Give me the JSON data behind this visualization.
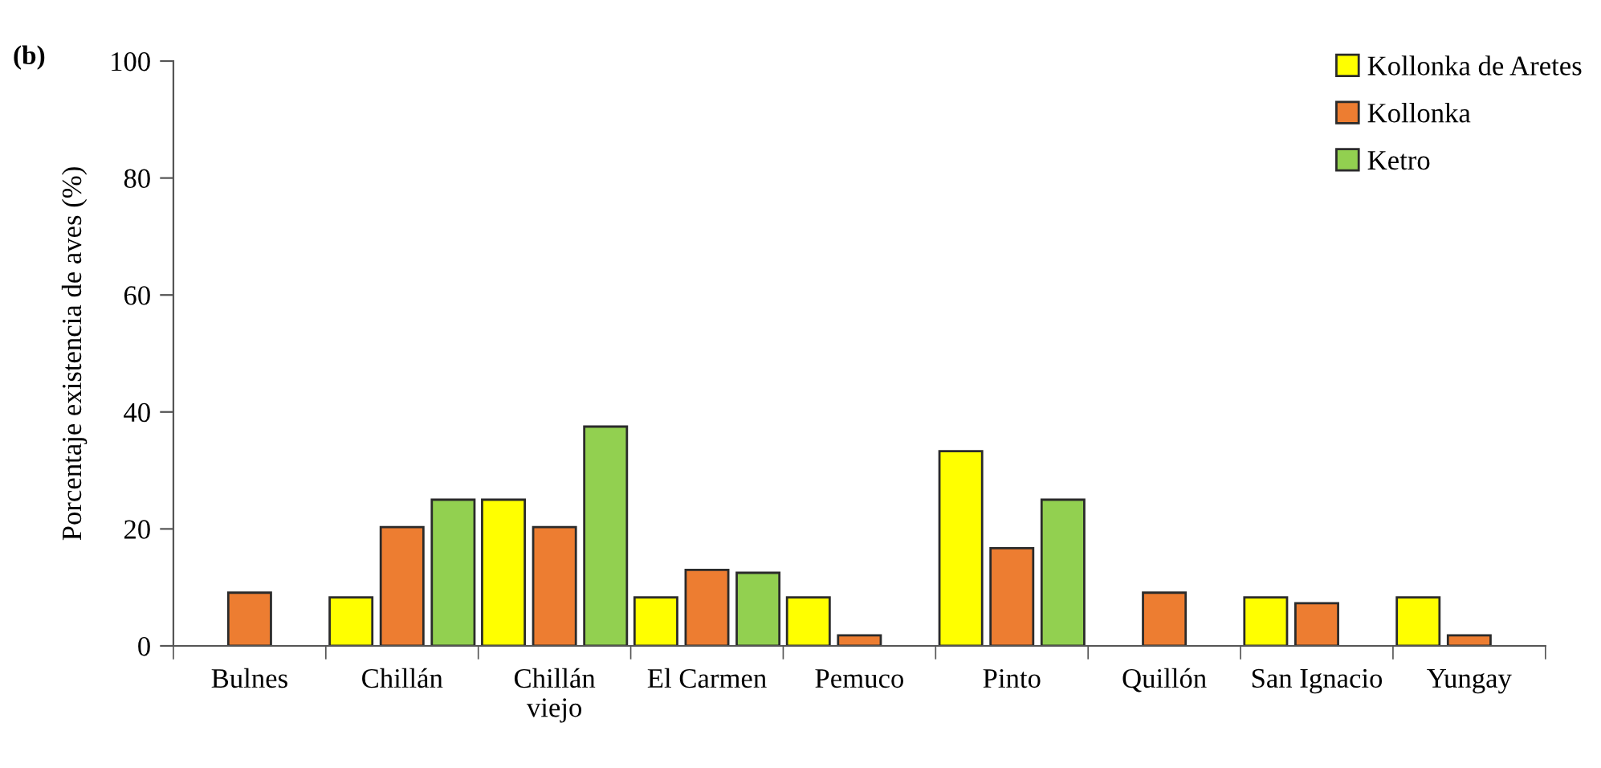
{
  "chart_data": {
    "type": "bar",
    "ylabel": "Porcentaje existencia de aves (%)",
    "annotations": [
      "(b)"
    ],
    "categories": [
      "Bulnes",
      "Chillán",
      "Chillán\nviejo",
      "El Carmen",
      "Pemuco",
      "Pinto",
      "Quillón",
      "San Ignacio",
      "Yungay"
    ],
    "series": [
      {
        "name": "Kollonka de Aretes",
        "color": "#ffff00",
        "values": [
          null,
          8.3,
          25,
          8.3,
          8.3,
          33.3,
          null,
          8.3,
          8.3
        ]
      },
      {
        "name": "Kollonka",
        "color": "#ed7d31",
        "values": [
          9.1,
          20.3,
          20.3,
          13.0,
          1.8,
          16.7,
          9.1,
          7.3,
          1.8
        ]
      },
      {
        "name": "Ketro",
        "color": "#92d050",
        "values": [
          null,
          25,
          37.5,
          12.5,
          null,
          25,
          null,
          null,
          null
        ]
      }
    ],
    "ylim": [
      0,
      100
    ],
    "yticks": [
      0,
      20,
      40,
      60,
      80,
      100
    ],
    "grid": false,
    "legend": "top right"
  }
}
